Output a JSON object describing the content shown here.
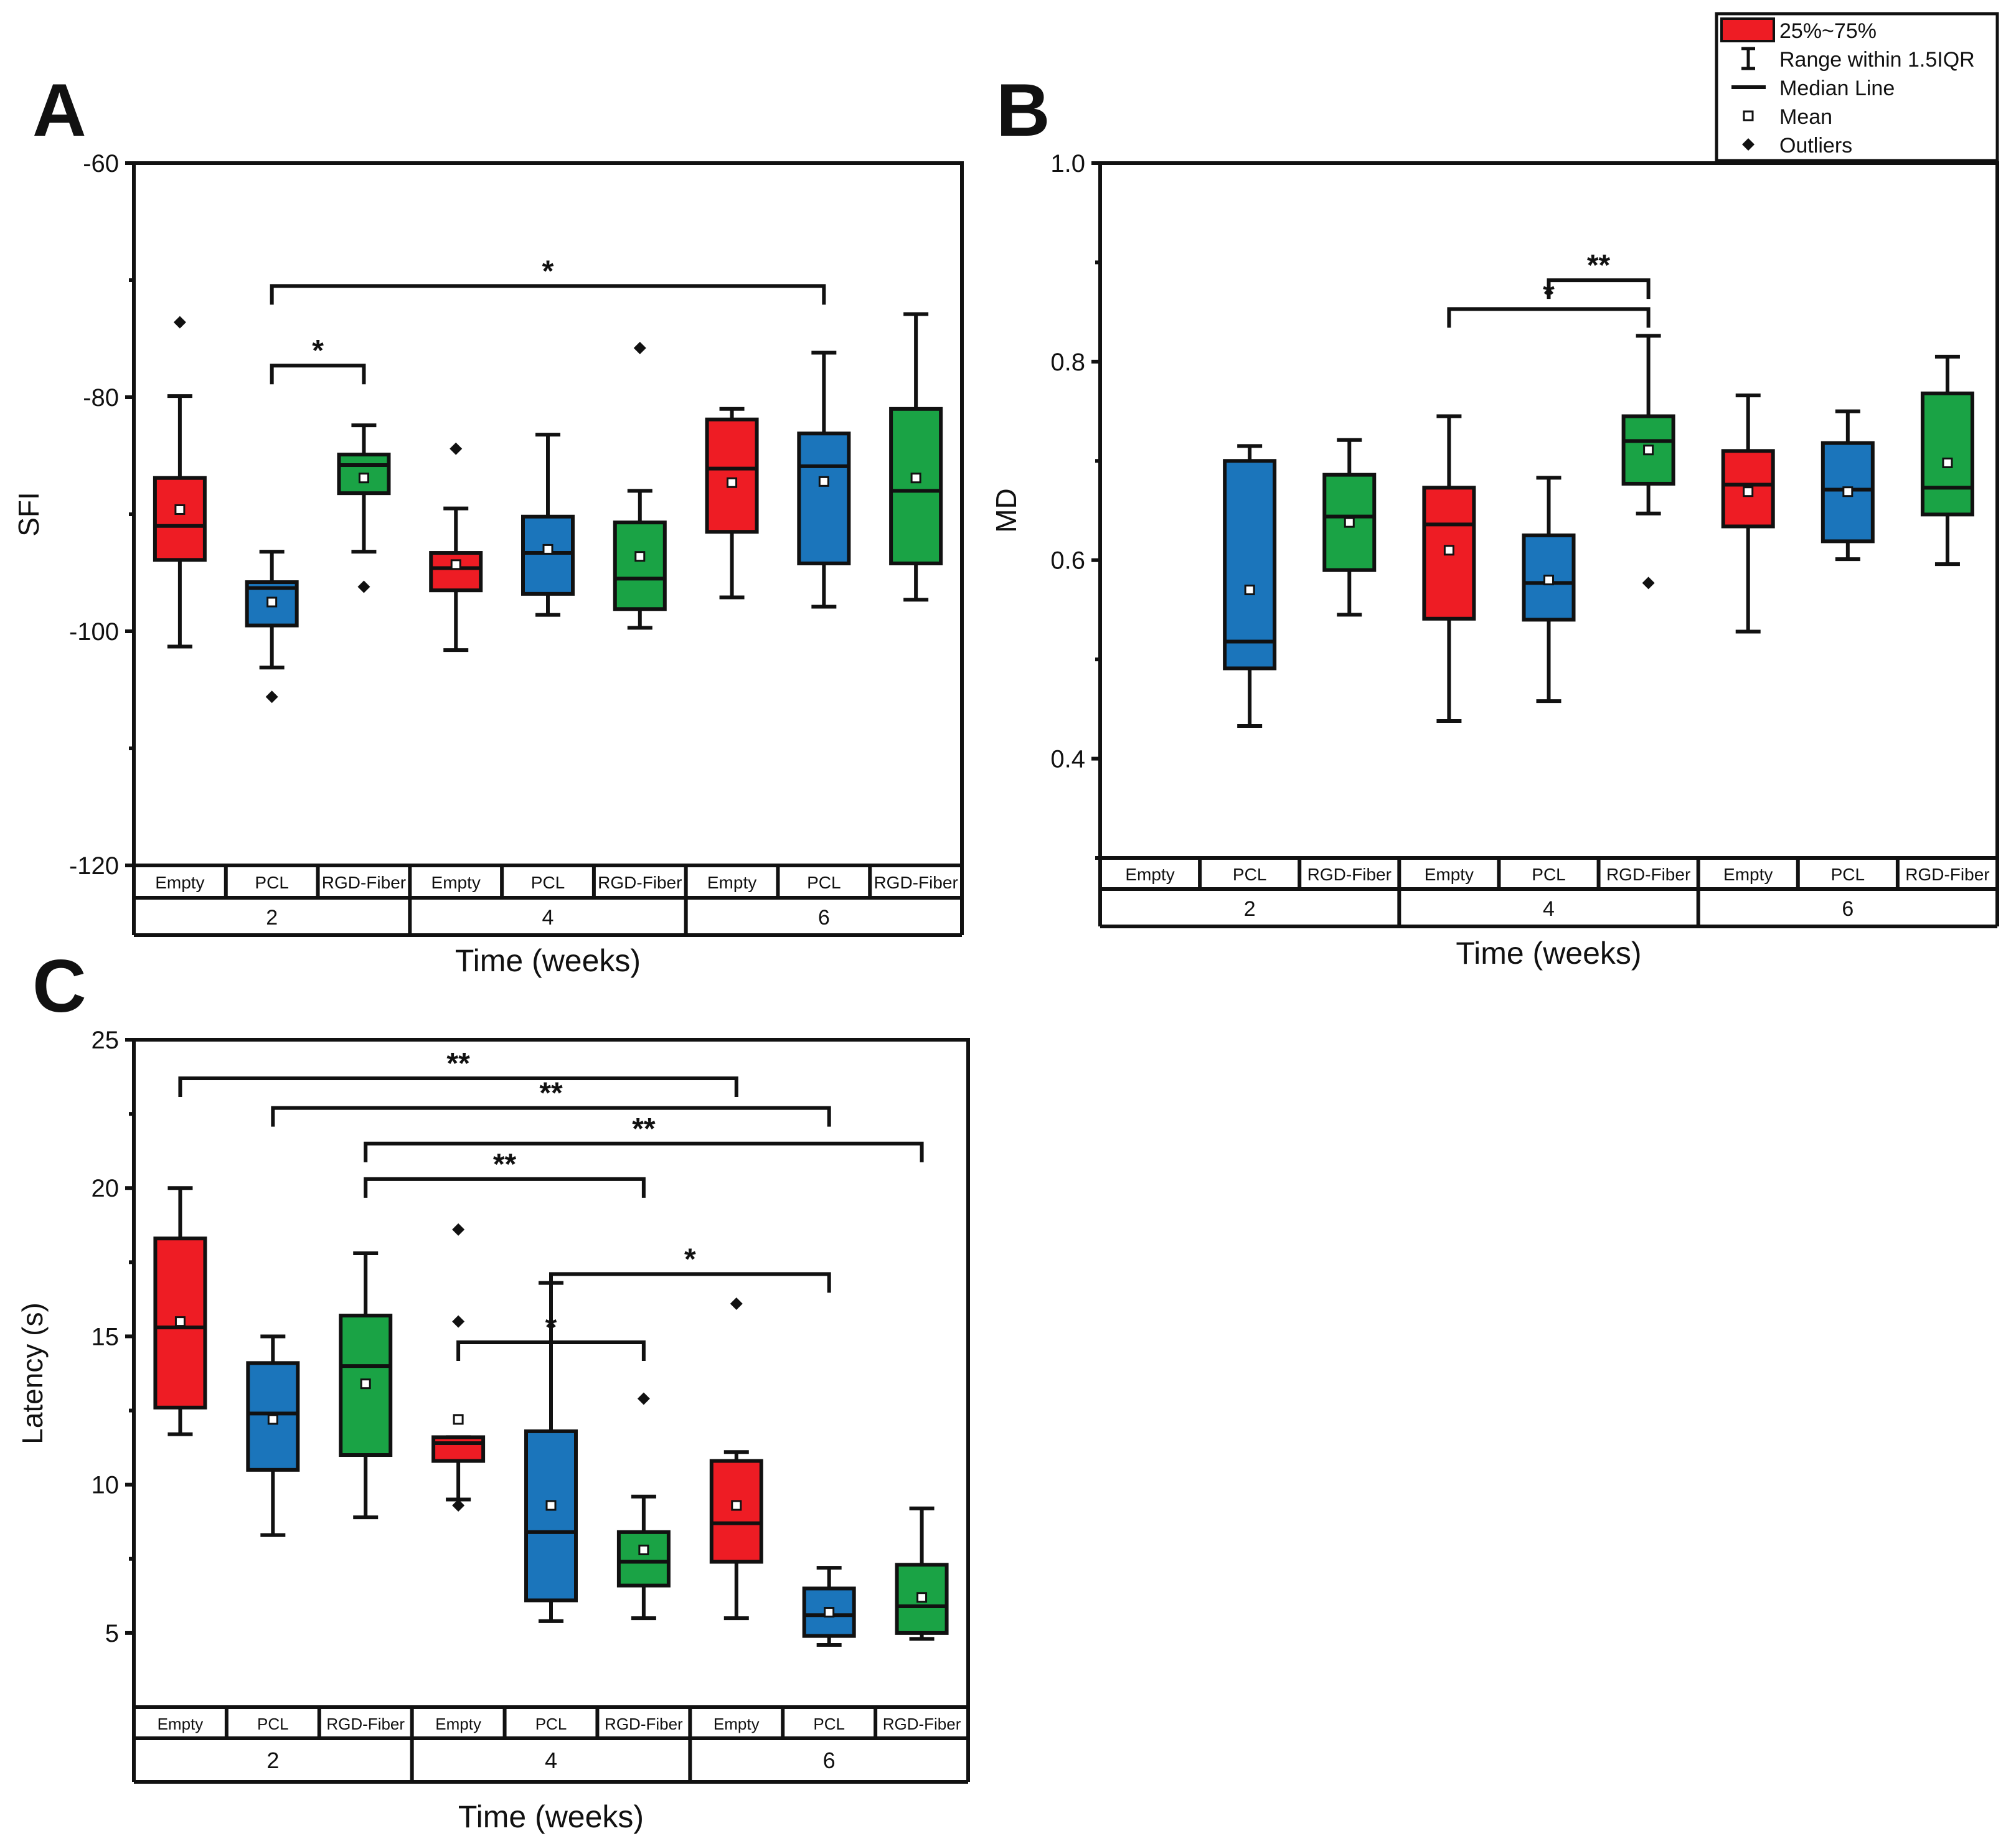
{
  "colors": {
    "empty": "#ee1c24",
    "pcl": "#1b75bb",
    "rgd": "#1aa345",
    "line": "#111111"
  },
  "legend": [
    {
      "key": "box",
      "label": "25%~75%"
    },
    {
      "key": "whisker",
      "label": "Range within 1.5IQR"
    },
    {
      "key": "median",
      "label": "Median Line"
    },
    {
      "key": "mean",
      "label": "Mean"
    },
    {
      "key": "outlier",
      "label": "Outliers"
    }
  ],
  "chart_data": [
    {
      "panel": "A",
      "type": "box",
      "ylabel": "SFI",
      "xlabel": "Time (weeks)",
      "ylim": [
        -120,
        -60
      ],
      "yticks": [
        -120,
        -100,
        -80,
        -60
      ],
      "groups": [
        "2",
        "4",
        "6"
      ],
      "categories": [
        "Empty",
        "PCL",
        "RGD-Fiber"
      ],
      "boxes": [
        {
          "week": "2",
          "cat": "Empty",
          "whisker_low": -101.3,
          "q1": -93.9,
          "median": -91.0,
          "q3": -86.9,
          "whisker_high": -79.9,
          "mean": -89.6,
          "outliers": [
            -73.6
          ]
        },
        {
          "week": "2",
          "cat": "PCL",
          "whisker_low": -103.1,
          "q1": -99.5,
          "median": -96.3,
          "q3": -95.8,
          "whisker_high": -93.2,
          "mean": -97.5,
          "outliers": [
            -105.6
          ]
        },
        {
          "week": "2",
          "cat": "RGD-Fiber",
          "whisker_low": -93.2,
          "q1": -88.2,
          "median": -85.8,
          "q3": -84.9,
          "whisker_high": -82.4,
          "mean": -86.9,
          "outliers": [
            -96.2
          ]
        },
        {
          "week": "4",
          "cat": "Empty",
          "whisker_low": -101.6,
          "q1": -96.5,
          "median": -94.6,
          "q3": -93.3,
          "whisker_high": -89.5,
          "mean": -94.3,
          "outliers": [
            -84.4
          ]
        },
        {
          "week": "4",
          "cat": "PCL",
          "whisker_low": -98.6,
          "q1": -96.8,
          "median": -93.3,
          "q3": -90.2,
          "whisker_high": -83.2,
          "mean": -93.0,
          "outliers": []
        },
        {
          "week": "4",
          "cat": "RGD-Fiber",
          "whisker_low": -99.7,
          "q1": -98.1,
          "median": -95.5,
          "q3": -90.7,
          "whisker_high": -88.0,
          "mean": -93.6,
          "outliers": [
            -75.8
          ]
        },
        {
          "week": "6",
          "cat": "Empty",
          "whisker_low": -97.1,
          "q1": -91.5,
          "median": -86.1,
          "q3": -81.9,
          "whisker_high": -81.0,
          "mean": -87.3,
          "outliers": []
        },
        {
          "week": "6",
          "cat": "PCL",
          "whisker_low": -97.9,
          "q1": -94.2,
          "median": -85.9,
          "q3": -83.1,
          "whisker_high": -76.2,
          "mean": -87.2,
          "outliers": []
        },
        {
          "week": "6",
          "cat": "RGD-Fiber",
          "whisker_low": -97.3,
          "q1": -94.2,
          "median": -88.0,
          "q3": -81.0,
          "whisker_high": -72.9,
          "mean": -86.9,
          "outliers": []
        }
      ],
      "brackets": [
        {
          "from": 1,
          "to": 7,
          "level": -70.5,
          "label": "*"
        },
        {
          "from": 1,
          "to": 2,
          "level": -77.3,
          "label": "*"
        }
      ]
    },
    {
      "panel": "B",
      "type": "box",
      "ylabel": "MD",
      "xlabel": "Time (weeks)",
      "ylim": [
        0.3,
        1.0
      ],
      "yticks": [
        0.4,
        0.6,
        0.8,
        1.0
      ],
      "groups": [
        "2",
        "4",
        "6"
      ],
      "categories": [
        "Empty",
        "PCL",
        "RGD-Fiber"
      ],
      "boxes": [
        {
          "week": "2",
          "cat": "Empty",
          "empty": true
        },
        {
          "week": "2",
          "cat": "PCL",
          "whisker_low": 0.433,
          "q1": 0.491,
          "median": 0.518,
          "q3": 0.7,
          "whisker_high": 0.715,
          "mean": 0.57,
          "outliers": []
        },
        {
          "week": "2",
          "cat": "RGD-Fiber",
          "whisker_low": 0.545,
          "q1": 0.59,
          "median": 0.644,
          "q3": 0.686,
          "whisker_high": 0.721,
          "mean": 0.638,
          "outliers": []
        },
        {
          "week": "4",
          "cat": "Empty",
          "whisker_low": 0.438,
          "q1": 0.541,
          "median": 0.636,
          "q3": 0.673,
          "whisker_high": 0.745,
          "mean": 0.61,
          "outliers": []
        },
        {
          "week": "4",
          "cat": "PCL",
          "whisker_low": 0.458,
          "q1": 0.54,
          "median": 0.577,
          "q3": 0.625,
          "whisker_high": 0.683,
          "mean": 0.58,
          "outliers": []
        },
        {
          "week": "4",
          "cat": "RGD-Fiber",
          "whisker_low": 0.647,
          "q1": 0.677,
          "median": 0.72,
          "q3": 0.745,
          "whisker_high": 0.826,
          "mean": 0.711,
          "outliers": [
            0.577
          ]
        },
        {
          "week": "6",
          "cat": "Empty",
          "whisker_low": 0.528,
          "q1": 0.634,
          "median": 0.676,
          "q3": 0.71,
          "whisker_high": 0.766,
          "mean": 0.669,
          "outliers": []
        },
        {
          "week": "6",
          "cat": "PCL",
          "whisker_low": 0.601,
          "q1": 0.619,
          "median": 0.671,
          "q3": 0.718,
          "whisker_high": 0.75,
          "mean": 0.669,
          "outliers": []
        },
        {
          "week": "6",
          "cat": "RGD-Fiber",
          "whisker_low": 0.596,
          "q1": 0.646,
          "median": 0.673,
          "q3": 0.768,
          "whisker_high": 0.805,
          "mean": 0.698,
          "outliers": []
        }
      ],
      "brackets": [
        {
          "from": 4,
          "to": 5,
          "level": 0.882,
          "label": "**"
        },
        {
          "from": 3,
          "to": 5,
          "level": 0.853,
          "label": "*"
        }
      ]
    },
    {
      "panel": "C",
      "type": "box",
      "ylabel": "Latency (s)",
      "xlabel": "Time (weeks)",
      "ylim": [
        2.5,
        25
      ],
      "yticks": [
        5,
        10,
        15,
        20,
        25
      ],
      "groups": [
        "2",
        "4",
        "6"
      ],
      "categories": [
        "Empty",
        "PCL",
        "RGD-Fiber"
      ],
      "boxes": [
        {
          "week": "2",
          "cat": "Empty",
          "whisker_low": 11.7,
          "q1": 12.6,
          "median": 15.3,
          "q3": 18.3,
          "whisker_high": 20.0,
          "mean": 15.5,
          "outliers": []
        },
        {
          "week": "2",
          "cat": "PCL",
          "whisker_low": 8.3,
          "q1": 10.5,
          "median": 12.4,
          "q3": 14.1,
          "whisker_high": 15.0,
          "mean": 12.2,
          "outliers": []
        },
        {
          "week": "2",
          "cat": "RGD-Fiber",
          "whisker_low": 8.9,
          "q1": 11.0,
          "median": 14.0,
          "q3": 15.7,
          "whisker_high": 17.8,
          "mean": 13.4,
          "outliers": []
        },
        {
          "week": "4",
          "cat": "Empty",
          "whisker_low": 9.5,
          "q1": 10.8,
          "median": 11.4,
          "q3": 11.6,
          "whisker_high": 11.6,
          "mean": 12.2,
          "outliers": [
            18.6,
            15.5,
            9.3
          ]
        },
        {
          "week": "4",
          "cat": "PCL",
          "whisker_low": 5.4,
          "q1": 6.1,
          "median": 8.4,
          "q3": 11.8,
          "whisker_high": 16.8,
          "mean": 9.3,
          "outliers": []
        },
        {
          "week": "4",
          "cat": "RGD-Fiber",
          "whisker_low": 5.5,
          "q1": 6.6,
          "median": 7.4,
          "q3": 8.4,
          "whisker_high": 9.6,
          "mean": 7.8,
          "outliers": [
            12.9
          ]
        },
        {
          "week": "6",
          "cat": "Empty",
          "whisker_low": 5.5,
          "q1": 7.4,
          "median": 8.7,
          "q3": 10.8,
          "whisker_high": 11.1,
          "mean": 9.3,
          "outliers": [
            16.1
          ]
        },
        {
          "week": "6",
          "cat": "PCL",
          "whisker_low": 4.6,
          "q1": 4.9,
          "median": 5.6,
          "q3": 6.5,
          "whisker_high": 7.2,
          "mean": 5.7,
          "outliers": []
        },
        {
          "week": "6",
          "cat": "RGD-Fiber",
          "whisker_low": 4.8,
          "q1": 5.0,
          "median": 5.9,
          "q3": 7.3,
          "whisker_high": 9.2,
          "mean": 6.2,
          "outliers": []
        }
      ],
      "brackets": [
        {
          "from": 0,
          "to": 6,
          "level": 23.7,
          "label": "**"
        },
        {
          "from": 1,
          "to": 7,
          "level": 22.7,
          "label": "**"
        },
        {
          "from": 2,
          "to": 8,
          "level": 21.5,
          "label": "**"
        },
        {
          "from": 2,
          "to": 5,
          "level": 20.3,
          "label": "**"
        },
        {
          "from": 4,
          "to": 7,
          "level": 17.1,
          "label": "*"
        },
        {
          "from": 3,
          "to": 5,
          "level": 14.8,
          "label": "*"
        }
      ]
    }
  ]
}
